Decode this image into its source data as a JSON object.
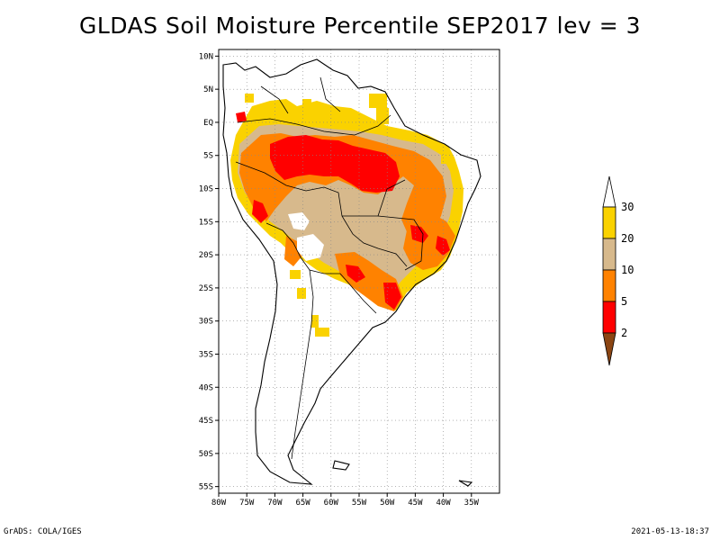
{
  "title": "GLDAS Soil Moisture Percentile SEP2017 lev = 3",
  "footer": {
    "left": "GrADS: COLA/IGES",
    "right": "2021-05-13-18:37"
  },
  "map": {
    "lon_range": [
      -80,
      -30
    ],
    "lat_range": [
      -56,
      11
    ],
    "lat_ticks": [
      {
        "value": 10,
        "label": "10N"
      },
      {
        "value": 5,
        "label": "5N"
      },
      {
        "value": 0,
        "label": "EQ"
      },
      {
        "value": -5,
        "label": "5S"
      },
      {
        "value": -10,
        "label": "10S"
      },
      {
        "value": -15,
        "label": "15S"
      },
      {
        "value": -20,
        "label": "20S"
      },
      {
        "value": -25,
        "label": "25S"
      },
      {
        "value": -30,
        "label": "30S"
      },
      {
        "value": -35,
        "label": "35S"
      },
      {
        "value": -40,
        "label": "40S"
      },
      {
        "value": -45,
        "label": "45S"
      },
      {
        "value": -50,
        "label": "50S"
      },
      {
        "value": -55,
        "label": "55S"
      }
    ],
    "lon_ticks": [
      {
        "value": -80,
        "label": "80W"
      },
      {
        "value": -75,
        "label": "75W"
      },
      {
        "value": -70,
        "label": "70W"
      },
      {
        "value": -65,
        "label": "65W"
      },
      {
        "value": -60,
        "label": "60W"
      },
      {
        "value": -55,
        "label": "55W"
      },
      {
        "value": -50,
        "label": "50W"
      },
      {
        "value": -45,
        "label": "45W"
      },
      {
        "value": -40,
        "label": "40W"
      },
      {
        "value": -35,
        "label": "35W"
      }
    ],
    "grid": "dotted",
    "colorbar": {
      "placement": "right",
      "levels": [
        "30",
        "20",
        "10",
        "5",
        "2"
      ],
      "colors": [
        "#ffffff",
        "#fad200",
        "#d7b98c",
        "#ff8200",
        "#ff0000",
        "#8b4513"
      ]
    }
  }
}
